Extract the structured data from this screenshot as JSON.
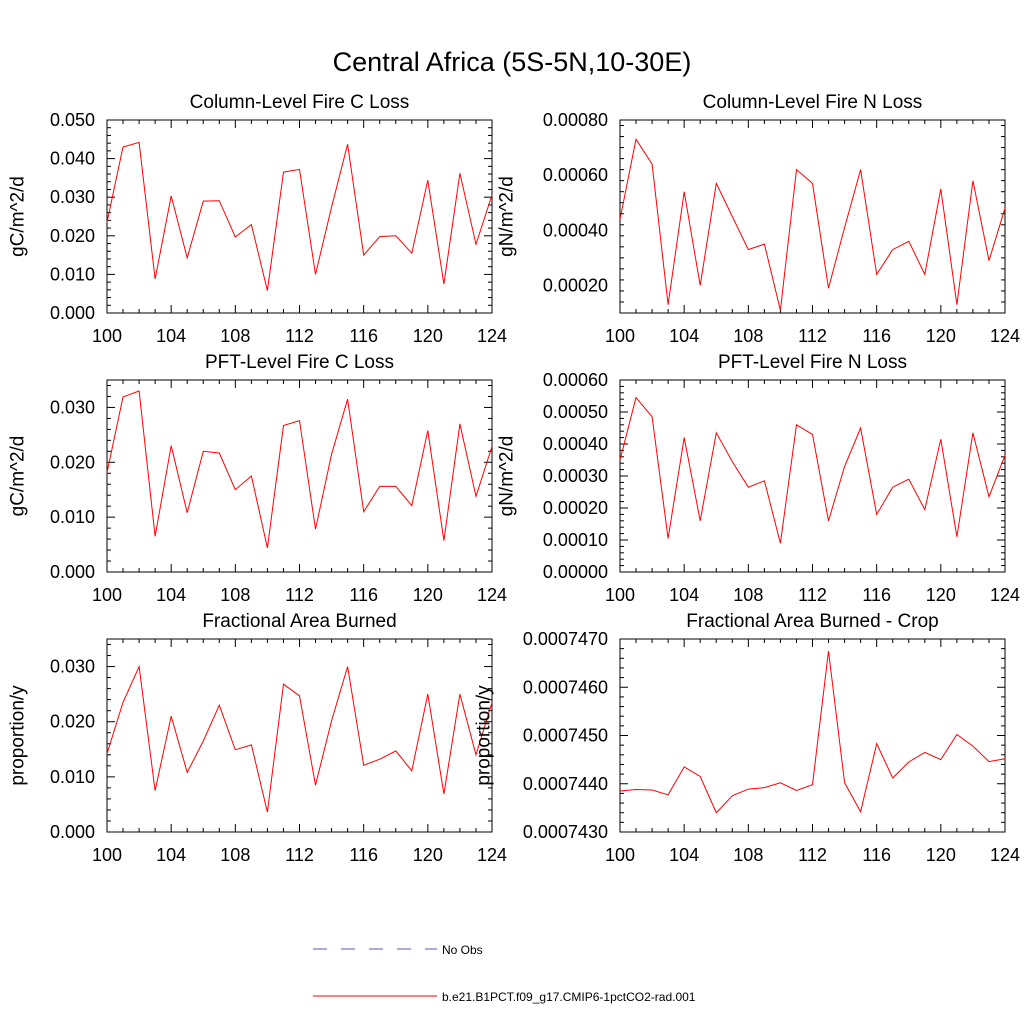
{
  "figure": {
    "title": "Central Africa (5S-5N,10-30E)",
    "legend": {
      "placement": "bottom-center",
      "entries": [
        {
          "label": "No Obs",
          "color": "#5a5ab0",
          "style": "dashed"
        },
        {
          "label": "b.e21.B1PCT.f09_g17.CMIP6-1pctCO2-rad.001",
          "color": "#ff0000",
          "style": "solid"
        }
      ]
    }
  },
  "chart_data": [
    {
      "type": "line",
      "title": "Column-Level Fire C Loss",
      "ylabel": "gC/m^2/d",
      "xlabel": "",
      "xlim": [
        100,
        124
      ],
      "ylim": [
        0,
        0.05
      ],
      "xticks": [
        "100",
        "104",
        "108",
        "112",
        "116",
        "120",
        "124"
      ],
      "yticks": [
        "0.000",
        "0.010",
        "0.020",
        "0.030",
        "0.040",
        "0.050"
      ],
      "x": [
        100,
        101,
        102,
        103,
        104,
        105,
        106,
        107,
        108,
        109,
        110,
        111,
        112,
        113,
        114,
        115,
        116,
        117,
        118,
        119,
        120,
        121,
        122,
        123,
        124
      ],
      "series": [
        {
          "color": "#ff0000",
          "values": [
            0.0235,
            0.043,
            0.0442,
            0.0088,
            0.0303,
            0.0143,
            0.029,
            0.0291,
            0.0197,
            0.0229,
            0.0058,
            0.0365,
            0.0372,
            0.01,
            0.0275,
            0.0437,
            0.015,
            0.0198,
            0.02,
            0.0155,
            0.0344,
            0.0075,
            0.0362,
            0.0178,
            0.0306
          ]
        }
      ]
    },
    {
      "type": "line",
      "title": "Column-Level Fire N Loss",
      "ylabel": "gN/m^2/d",
      "xlabel": "",
      "xlim": [
        100,
        124
      ],
      "ylim": [
        0.0001,
        0.0008
      ],
      "xticks": [
        "100",
        "104",
        "108",
        "112",
        "116",
        "120",
        "124"
      ],
      "yticks": [
        "0.00020",
        "0.00040",
        "0.00060",
        "0.00080"
      ],
      "x": [
        100,
        101,
        102,
        103,
        104,
        105,
        106,
        107,
        108,
        109,
        110,
        111,
        112,
        113,
        114,
        115,
        116,
        117,
        118,
        119,
        120,
        121,
        122,
        123,
        124
      ],
      "series": [
        {
          "color": "#ff0000",
          "values": [
            0.00044,
            0.00073,
            0.00064,
            0.00013,
            0.00054,
            0.0002,
            0.00057,
            0.00045,
            0.00033,
            0.00035,
            0.00011,
            0.00062,
            0.00057,
            0.00019,
            0.00041,
            0.00062,
            0.00024,
            0.00033,
            0.00036,
            0.00024,
            0.00055,
            0.00013,
            0.00058,
            0.00029,
            0.00048
          ]
        }
      ]
    },
    {
      "type": "line",
      "title": "PFT-Level Fire C Loss",
      "ylabel": "gC/m^2/d",
      "xlabel": "",
      "xlim": [
        100,
        124
      ],
      "ylim": [
        0,
        0.035
      ],
      "xticks": [
        "100",
        "104",
        "108",
        "112",
        "116",
        "120",
        "124"
      ],
      "yticks": [
        "0.000",
        "0.010",
        "0.020",
        "0.030"
      ],
      "x": [
        100,
        101,
        102,
        103,
        104,
        105,
        106,
        107,
        108,
        109,
        110,
        111,
        112,
        113,
        114,
        115,
        116,
        117,
        118,
        119,
        120,
        121,
        122,
        123,
        124
      ],
      "series": [
        {
          "color": "#ff0000",
          "values": [
            0.0181,
            0.0319,
            0.033,
            0.0065,
            0.023,
            0.0108,
            0.022,
            0.0217,
            0.015,
            0.0175,
            0.0044,
            0.0267,
            0.0276,
            0.0078,
            0.0215,
            0.0315,
            0.011,
            0.0156,
            0.0156,
            0.0121,
            0.0258,
            0.0057,
            0.027,
            0.0138,
            0.0229
          ]
        }
      ]
    },
    {
      "type": "line",
      "title": "PFT-Level Fire N Loss",
      "ylabel": "gN/m^2/d",
      "xlabel": "",
      "xlim": [
        100,
        124
      ],
      "ylim": [
        0,
        0.0006
      ],
      "xticks": [
        "100",
        "104",
        "108",
        "112",
        "116",
        "120",
        "124"
      ],
      "yticks": [
        "0.00000",
        "0.00010",
        "0.00020",
        "0.00030",
        "0.00040",
        "0.00050",
        "0.00060"
      ],
      "x": [
        100,
        101,
        102,
        103,
        104,
        105,
        106,
        107,
        108,
        109,
        110,
        111,
        112,
        113,
        114,
        115,
        116,
        117,
        118,
        119,
        120,
        121,
        122,
        123,
        124
      ],
      "series": [
        {
          "color": "#ff0000",
          "values": [
            0.00035,
            0.000545,
            0.000485,
            0.000105,
            0.00042,
            0.00016,
            0.000435,
            0.000345,
            0.000265,
            0.000285,
            9e-05,
            0.00046,
            0.00043,
            0.00016,
            0.00033,
            0.00045,
            0.00018,
            0.000265,
            0.00029,
            0.000195,
            0.000415,
            0.00011,
            0.000435,
            0.000235,
            0.000365
          ]
        }
      ]
    },
    {
      "type": "line",
      "title": "Fractional Area Burned",
      "ylabel": "proportion/y",
      "xlabel": "",
      "xlim": [
        100,
        124
      ],
      "ylim": [
        0,
        0.035
      ],
      "xticks": [
        "100",
        "104",
        "108",
        "112",
        "116",
        "120",
        "124"
      ],
      "yticks": [
        "0.000",
        "0.010",
        "0.020",
        "0.030"
      ],
      "x": [
        100,
        101,
        102,
        103,
        104,
        105,
        106,
        107,
        108,
        109,
        110,
        111,
        112,
        113,
        114,
        115,
        116,
        117,
        118,
        119,
        120,
        121,
        122,
        123,
        124
      ],
      "series": [
        {
          "color": "#ff0000",
          "values": [
            0.0142,
            0.0235,
            0.03,
            0.0075,
            0.021,
            0.0108,
            0.0165,
            0.023,
            0.0149,
            0.0158,
            0.0036,
            0.0268,
            0.0247,
            0.0085,
            0.0202,
            0.03,
            0.0121,
            0.0132,
            0.0147,
            0.0111,
            0.025,
            0.0069,
            0.025,
            0.014,
            0.0235
          ]
        }
      ]
    },
    {
      "type": "line",
      "title": "Fractional Area Burned - Crop",
      "ylabel": "proportion/y",
      "xlabel": "",
      "xlim": [
        100,
        124
      ],
      "ylim": [
        0.000743,
        0.000747
      ],
      "xticks": [
        "100",
        "104",
        "108",
        "112",
        "116",
        "120",
        "124"
      ],
      "yticks": [
        "0.0007430",
        "0.0007440",
        "0.0007450",
        "0.0007460",
        "0.0007470"
      ],
      "x": [
        100,
        101,
        102,
        103,
        104,
        105,
        106,
        107,
        108,
        109,
        110,
        111,
        112,
        113,
        114,
        115,
        116,
        117,
        118,
        119,
        120,
        121,
        122,
        123,
        124
      ],
      "series": [
        {
          "color": "#ff0000",
          "values": [
            0.00074385,
            0.00074388,
            0.00074387,
            0.00074377,
            0.00074435,
            0.00074415,
            0.0007434,
            0.00074375,
            0.00074389,
            0.00074392,
            0.00074402,
            0.00074386,
            0.00074398,
            0.00074675,
            0.00074402,
            0.00074342,
            0.00074483,
            0.00074412,
            0.00074445,
            0.00074465,
            0.0007445,
            0.00074502,
            0.00074478,
            0.00074446,
            0.00074452
          ]
        }
      ]
    }
  ]
}
